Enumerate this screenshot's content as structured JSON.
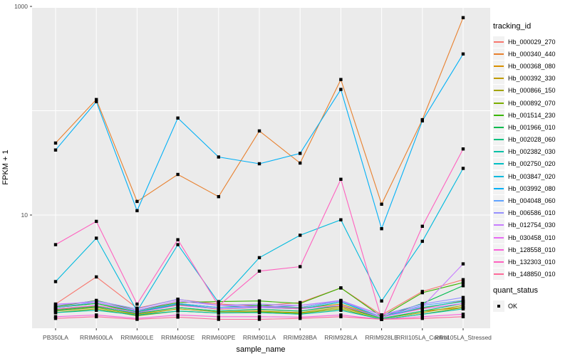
{
  "panel": {
    "bg_color": "#EBEBEB",
    "grid_color": "#FFFFFF",
    "tick_text_color": "#4D4D4D",
    "legend_key_bg": "#F2F2F2"
  },
  "chart_data": {
    "type": "line",
    "title": "",
    "xlabel": "sample_name",
    "ylabel": "FPKM + 1",
    "y_scale": "log10",
    "ylim": [
      0.82,
      950
    ],
    "y_ticks": [
      {
        "label": "10",
        "value": 10
      },
      {
        "label": "1000",
        "value": 1000
      }
    ],
    "y_gridline_values": [
      10,
      100,
      1000
    ],
    "legend_title": "tracking_id",
    "legend_position": "right",
    "grid": "on",
    "point_marker": {
      "shape": "square",
      "color": "#000000"
    },
    "quant_legend": {
      "title": "quant_status",
      "items": [
        {
          "label": "OK"
        }
      ]
    },
    "categories": [
      "PB350LA",
      "RRIM600LA",
      "RRIM600LE",
      "RRIM600SE",
      "RRIM600PE",
      "RRIM901LA",
      "RRIM928BA",
      "RRIM928LA",
      "RRIM928LE",
      "RRII105LA_Control",
      "RRII105LA_Stressed"
    ],
    "series": [
      {
        "name": "Hb_000029_270",
        "color": "#F8766D",
        "values": [
          1.4,
          2.55,
          1.28,
          1.55,
          1.4,
          1.35,
          1.45,
          2.0,
          1.1,
          1.85,
          2.4
        ]
      },
      {
        "name": "Hb_000340_440",
        "color": "#E8802E",
        "values": [
          49,
          128,
          13.5,
          24.5,
          15,
          64,
          31.5,
          199,
          12.7,
          82,
          780
        ]
      },
      {
        "name": "Hb_000368_080",
        "color": "#D89000",
        "values": [
          1.24,
          1.34,
          1.12,
          1.3,
          1.2,
          1.24,
          1.2,
          1.34,
          1.02,
          1.2,
          1.3
        ]
      },
      {
        "name": "Hb_000392_330",
        "color": "#C09B00",
        "values": [
          1.3,
          1.42,
          1.15,
          1.38,
          1.25,
          1.3,
          1.28,
          1.4,
          1.05,
          1.28,
          1.5
        ]
      },
      {
        "name": "Hb_000866_150",
        "color": "#A3A500",
        "values": [
          1.2,
          1.3,
          1.1,
          1.26,
          1.18,
          1.2,
          1.16,
          1.3,
          1.02,
          1.16,
          1.36
        ]
      },
      {
        "name": "Hb_000892_070",
        "color": "#7CAE00",
        "values": [
          1.16,
          1.26,
          1.08,
          1.2,
          1.15,
          1.18,
          1.14,
          1.26,
          1.0,
          1.12,
          1.3
        ]
      },
      {
        "name": "Hb_001514_230",
        "color": "#39B600",
        "values": [
          1.32,
          1.52,
          1.22,
          1.45,
          1.48,
          1.5,
          1.42,
          2.0,
          1.06,
          1.8,
          2.25
        ]
      },
      {
        "name": "Hb_001966_010",
        "color": "#00BB4E",
        "values": [
          1.3,
          1.42,
          1.18,
          1.42,
          1.3,
          1.36,
          1.3,
          1.5,
          1.05,
          1.42,
          2.1
        ]
      },
      {
        "name": "Hb_002028_060",
        "color": "#00C07F",
        "values": [
          1.22,
          1.32,
          1.14,
          1.3,
          1.2,
          1.25,
          1.2,
          1.36,
          1.02,
          1.2,
          1.42
        ]
      },
      {
        "name": "Hb_002382_030",
        "color": "#00C1A7",
        "values": [
          1.16,
          1.22,
          1.1,
          1.2,
          1.15,
          1.16,
          1.12,
          1.22,
          1.0,
          1.12,
          1.26
        ]
      },
      {
        "name": "Hb_002750_020",
        "color": "#00BFC4",
        "values": [
          1.26,
          1.36,
          1.16,
          1.4,
          1.26,
          1.3,
          1.26,
          1.46,
          1.05,
          1.3,
          1.48
        ]
      },
      {
        "name": "Hb_003847_020",
        "color": "#00BADE",
        "values": [
          2.3,
          6.0,
          1.2,
          5.2,
          1.45,
          3.9,
          6.4,
          9.0,
          1.5,
          5.6,
          28
        ]
      },
      {
        "name": "Hb_003992_080",
        "color": "#00B0F6",
        "values": [
          42,
          122,
          11,
          85,
          36,
          31,
          39,
          160,
          7.4,
          80,
          350
        ]
      },
      {
        "name": "Hb_004048_060",
        "color": "#61A3FF",
        "values": [
          1.3,
          1.46,
          1.2,
          1.42,
          1.3,
          1.32,
          1.3,
          1.5,
          1.05,
          1.36,
          1.52
        ]
      },
      {
        "name": "Hb_006586_010",
        "color": "#9590FF",
        "values": [
          1.36,
          1.5,
          1.26,
          1.56,
          1.36,
          1.4,
          1.36,
          1.52,
          1.1,
          1.4,
          1.62
        ]
      },
      {
        "name": "Hb_012754_030",
        "color": "#C77CFF",
        "values": [
          1.4,
          1.46,
          1.22,
          1.5,
          1.36,
          1.32,
          1.36,
          1.5,
          1.1,
          1.32,
          3.4
        ]
      },
      {
        "name": "Hb_030458_010",
        "color": "#E76BF3",
        "values": [
          1.26,
          1.36,
          1.16,
          1.36,
          1.26,
          1.3,
          1.26,
          1.36,
          1.05,
          1.26,
          1.42
        ]
      },
      {
        "name": "Hb_128558_010",
        "color": "#FA62DB",
        "values": [
          1.06,
          1.1,
          1.02,
          1.1,
          1.06,
          1.06,
          1.05,
          1.1,
          1.0,
          1.06,
          1.12
        ]
      },
      {
        "name": "Hb_132303_010",
        "color": "#FF61BF",
        "values": [
          5.2,
          8.7,
          1.4,
          5.8,
          1.35,
          2.9,
          3.2,
          22,
          1.0,
          7.8,
          43
        ]
      },
      {
        "name": "Hb_148850_010",
        "color": "#FF6A9A",
        "values": [
          1.02,
          1.06,
          1.0,
          1.05,
          1.0,
          1.0,
          1.02,
          1.06,
          1.0,
          1.02,
          1.06
        ]
      }
    ]
  }
}
